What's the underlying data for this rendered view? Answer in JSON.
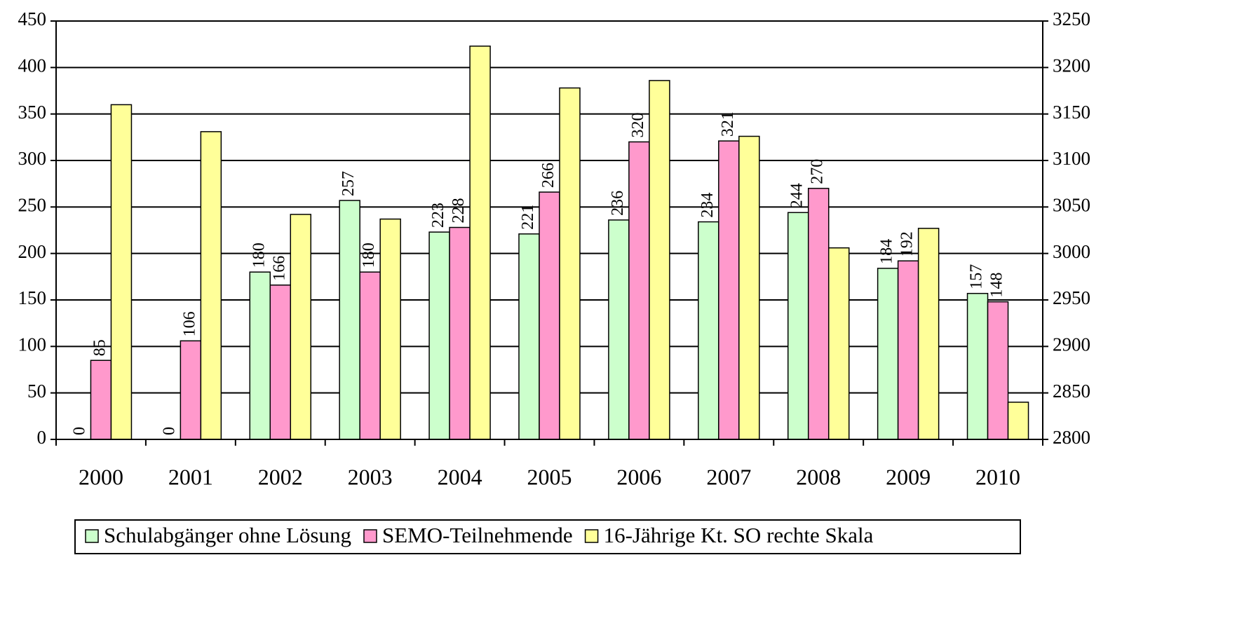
{
  "chart_data": {
    "type": "bar",
    "categories": [
      "2000",
      "2001",
      "2002",
      "2003",
      "2004",
      "2005",
      "2006",
      "2007",
      "2008",
      "2009",
      "2010"
    ],
    "series": [
      {
        "name": "Schulabgänger ohne Lösung",
        "color": "#ccffcc",
        "data_labels": true,
        "values": [
          0,
          0,
          180,
          257,
          223,
          221,
          236,
          234,
          244,
          184,
          157
        ]
      },
      {
        "name": "SEMO-Teilnehmende",
        "color": "#ff99cc",
        "data_labels": true,
        "values": [
          85,
          106,
          166,
          180,
          228,
          266,
          320,
          321,
          270,
          192,
          148
        ]
      },
      {
        "name": "16-Jährige Kt. SO rechte Skala",
        "color": "#ffff99",
        "data_labels": false,
        "axis": "y2",
        "values": [
          3160,
          3131,
          3042,
          3037,
          3223,
          3178,
          3186,
          3126,
          3006,
          3027,
          2840
        ]
      }
    ],
    "ylim": [
      0,
      450
    ],
    "yticks": [
      0,
      50,
      100,
      150,
      200,
      250,
      300,
      350,
      400,
      450
    ],
    "y2lim": [
      2800,
      3250
    ],
    "y2ticks": [
      2800,
      2850,
      2900,
      2950,
      3000,
      3050,
      3100,
      3150,
      3200,
      3250
    ],
    "grid": true,
    "legend": "bottom"
  }
}
